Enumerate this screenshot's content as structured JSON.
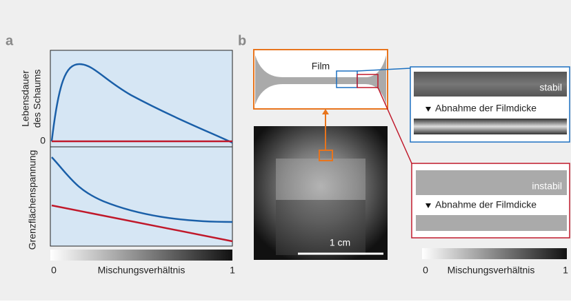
{
  "panel_a": {
    "label": "a",
    "top_ylabel": [
      "Lebensdauer",
      "des Schaums"
    ],
    "zero": "0",
    "bottom_ylabel": "Grenzflächenspannung",
    "x_axis": {
      "start": "0",
      "label": "Mischungsverhältnis",
      "end": "1"
    }
  },
  "panel_b": {
    "label": "b",
    "film": "Film",
    "scale": "1 cm",
    "stable": {
      "label": "stabil",
      "arrow": "Abnahme der Filmdicke"
    },
    "unstable": {
      "label": "instabil",
      "arrow": "Abnahme der Filmdicke"
    },
    "x_axis": {
      "start": "0",
      "label": "Mischungsverhältnis",
      "end": "1"
    }
  }
}
